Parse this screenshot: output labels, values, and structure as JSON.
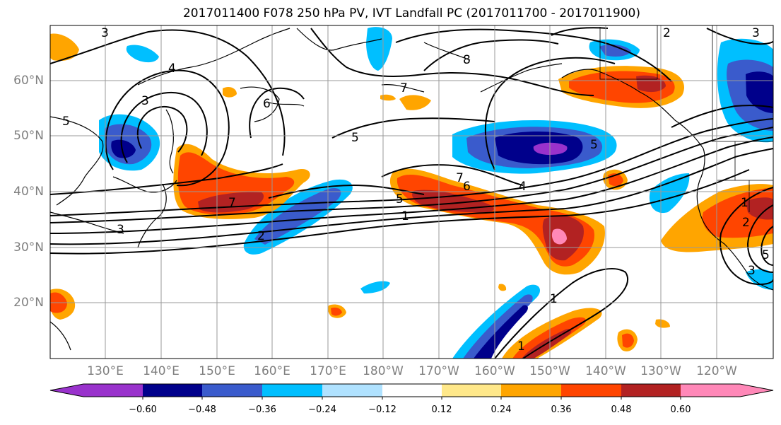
{
  "title": "2017011400 F078 250 hPa PV, IVT Landfall PC (2017011700 - 2017011900)",
  "lat_labels": [
    "60°N",
    "50°N",
    "40°N",
    "30°N",
    "20°N"
  ],
  "lon_labels": [
    "130°E",
    "140°E",
    "150°E",
    "160°E",
    "170°E",
    "180°W",
    "170°W",
    "160°W",
    "150°W",
    "140°W",
    "130°W",
    "120°W"
  ],
  "colorbar": {
    "tick_labels": [
      "−0.60",
      "−0.48",
      "−0.36",
      "−0.24",
      "−0.12",
      "0.12",
      "0.24",
      "0.36",
      "0.48",
      "0.60"
    ],
    "colors": [
      "#9932cc",
      "#00008b",
      "#3a5bcc",
      "#00bfff",
      "#b0e2ff",
      "#ffffff",
      "#ffe88a",
      "#ffa500",
      "#ff4500",
      "#b22222",
      "#ff88b8"
    ]
  },
  "contour_labels": [
    "3",
    "4",
    "3",
    "5",
    "6",
    "5",
    "7",
    "8",
    "2",
    "3",
    "7",
    "6",
    "4",
    "5",
    "5",
    "1",
    "2",
    "7",
    "3",
    "1",
    "1",
    "2",
    "5",
    "3",
    "1"
  ]
}
